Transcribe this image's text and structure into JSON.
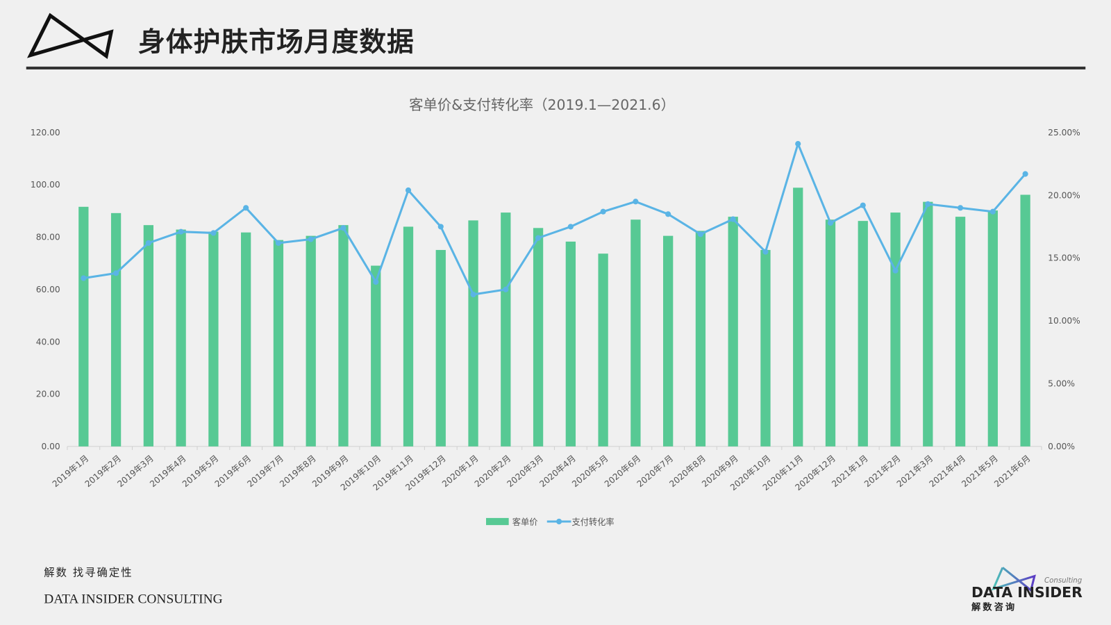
{
  "header": {
    "title": "身体护肤市场月度数据",
    "logo_icon": "bowtie-triangle-logo"
  },
  "footer": {
    "tagline": "解数 找寻确定性",
    "company": "DATA INSIDER CONSULTING",
    "logo_text": "DATA INSIDER",
    "logo_sub": "解数咨询",
    "logo_consulting": "Consulting"
  },
  "chart_data": {
    "type": "bar+line",
    "title": "客单价&支付转化率（2019.1—2021.6）",
    "categories": [
      "2019年1月",
      "2019年2月",
      "2019年3月",
      "2019年4月",
      "2019年5月",
      "2019年6月",
      "2019年7月",
      "2019年8月",
      "2019年9月",
      "2019年10月",
      "2019年11月",
      "2019年12月",
      "2020年1月",
      "2020年2月",
      "2020年3月",
      "2020年4月",
      "2020年5月",
      "2020年6月",
      "2020年7月",
      "2020年8月",
      "2020年9月",
      "2020年10月",
      "2020年11月",
      "2020年12月",
      "2021年1月",
      "2021年2月",
      "2021年3月",
      "2021年4月",
      "2021年5月",
      "2021年6月"
    ],
    "series": [
      {
        "name": "客单价",
        "type": "bar",
        "axis": "left",
        "color": "#57c994",
        "values": [
          91.6,
          89.2,
          84.6,
          82.9,
          82.1,
          81.8,
          78.9,
          80.5,
          84.6,
          69.1,
          84.0,
          75.1,
          86.4,
          89.4,
          83.5,
          78.3,
          73.7,
          86.7,
          80.5,
          82.4,
          87.8,
          75.1,
          98.9,
          86.7,
          86.2,
          89.4,
          93.5,
          87.8,
          90.2,
          96.2
        ]
      },
      {
        "name": "支付转化率",
        "type": "line",
        "axis": "right",
        "color": "#5ab4e5",
        "values": [
          13.4,
          13.8,
          16.2,
          17.1,
          17.0,
          19.0,
          16.2,
          16.5,
          17.4,
          13.1,
          20.4,
          17.5,
          12.1,
          12.5,
          16.6,
          17.5,
          18.7,
          19.5,
          18.5,
          16.9,
          18.1,
          15.5,
          24.1,
          17.8,
          19.2,
          14.0,
          19.3,
          19.0,
          18.7,
          21.7
        ]
      }
    ],
    "left_axis": {
      "ylim": [
        0,
        120
      ],
      "ticks": [
        "0.00",
        "20.00",
        "40.00",
        "60.00",
        "80.00",
        "100.00",
        "120.00"
      ]
    },
    "right_axis": {
      "ylim": [
        0,
        25
      ],
      "ticks": [
        "0.00%",
        "5.00%",
        "10.00%",
        "15.00%",
        "20.00%",
        "25.00%"
      ]
    },
    "legend": "bottom",
    "grid": false
  }
}
